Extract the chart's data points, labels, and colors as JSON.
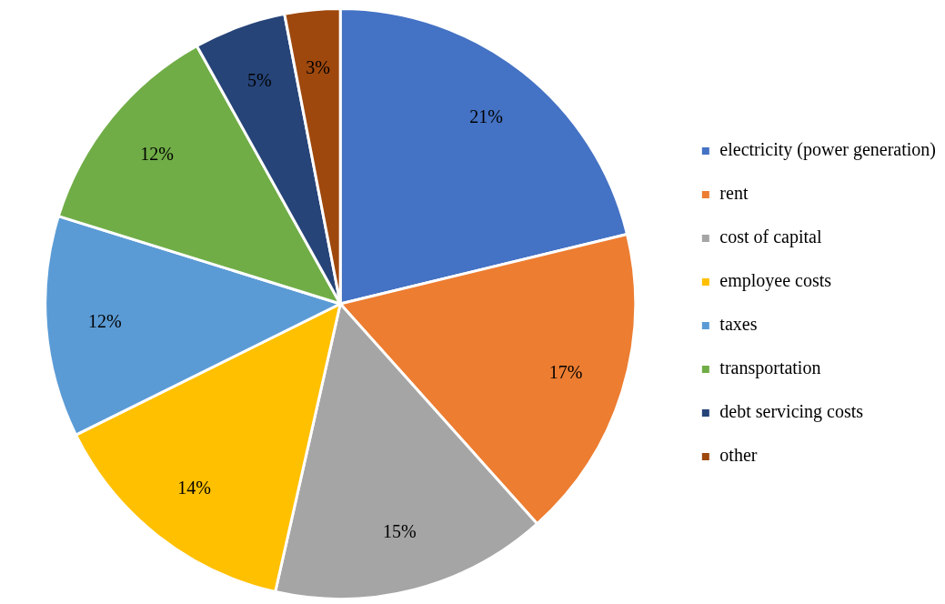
{
  "chart_data": {
    "type": "pie",
    "categories": [
      "electricity (power generation)",
      "rent",
      "cost of capital",
      "employee costs",
      "taxes",
      "transportation",
      "debt servicing costs",
      "other"
    ],
    "values": [
      21,
      17,
      15,
      14,
      12,
      12,
      5,
      3
    ],
    "colors": [
      "#4472c4",
      "#ed7d31",
      "#a5a5a5",
      "#ffc000",
      "#5b9bd5",
      "#70ad47",
      "#264478",
      "#9e480e"
    ],
    "value_labels": [
      "21%",
      "17%",
      "15%",
      "14%",
      "12%",
      "12%",
      "5%",
      "3%"
    ],
    "legend": "right"
  }
}
